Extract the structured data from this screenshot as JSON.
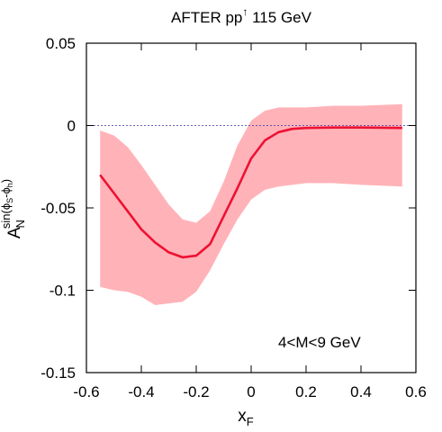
{
  "chart_data": {
    "type": "area",
    "title": {
      "main": "AFTER pp",
      "superscript": "↑",
      "rest": " 115 GeV"
    },
    "xlabel": {
      "base": "x",
      "sub": "F"
    },
    "ylabel": {
      "base": "A",
      "sub": "N",
      "sup": "sin(ϕ",
      "sup_s": "S",
      "sup_mid": "-ϕ",
      "sup_h": "h",
      "sup_end": ")"
    },
    "annotation": "4<M<9 GeV",
    "xlim": [
      -0.6,
      0.6
    ],
    "ylim": [
      -0.15,
      0.05
    ],
    "xticks": [
      -0.6,
      -0.4,
      -0.2,
      0,
      0.2,
      0.4,
      0.6
    ],
    "xtick_labels": [
      "-0.6",
      "-0.4",
      "-0.2",
      "0",
      "0.2",
      "0.4",
      "0.6"
    ],
    "yticks": [
      -0.15,
      -0.1,
      -0.05,
      0,
      0.05
    ],
    "ytick_labels": [
      "-0.15",
      "-0.1",
      "-0.05",
      "0",
      "0.05"
    ],
    "reference_line": {
      "y": 0,
      "style": "dashed",
      "color": "#3333aa"
    },
    "band": {
      "color": "#ffb3b8",
      "x": [
        -0.55,
        -0.5,
        -0.45,
        -0.4,
        -0.35,
        -0.3,
        -0.25,
        -0.2,
        -0.15,
        -0.1,
        -0.05,
        0.0,
        0.05,
        0.1,
        0.15,
        0.2,
        0.3,
        0.4,
        0.55
      ],
      "upper": [
        -0.003,
        -0.006,
        -0.013,
        -0.024,
        -0.036,
        -0.048,
        -0.057,
        -0.059,
        -0.052,
        -0.034,
        -0.012,
        0.003,
        0.009,
        0.011,
        0.011,
        0.011,
        0.012,
        0.012,
        0.013
      ],
      "lower": [
        -0.098,
        -0.1,
        -0.101,
        -0.104,
        -0.109,
        -0.108,
        -0.107,
        -0.101,
        -0.088,
        -0.072,
        -0.057,
        -0.045,
        -0.039,
        -0.037,
        -0.036,
        -0.035,
        -0.035,
        -0.036,
        -0.037
      ]
    },
    "series": [
      {
        "color": "#ee1133",
        "x": [
          -0.55,
          -0.5,
          -0.45,
          -0.4,
          -0.35,
          -0.3,
          -0.25,
          -0.2,
          -0.15,
          -0.1,
          -0.05,
          0.0,
          0.05,
          0.1,
          0.15,
          0.2,
          0.3,
          0.4,
          0.55
        ],
        "y": [
          -0.03,
          -0.041,
          -0.052,
          -0.063,
          -0.071,
          -0.077,
          -0.08,
          -0.079,
          -0.072,
          -0.055,
          -0.038,
          -0.02,
          -0.009,
          -0.004,
          -0.002,
          -0.0015,
          -0.0012,
          -0.0012,
          -0.0015
        ]
      }
    ]
  }
}
